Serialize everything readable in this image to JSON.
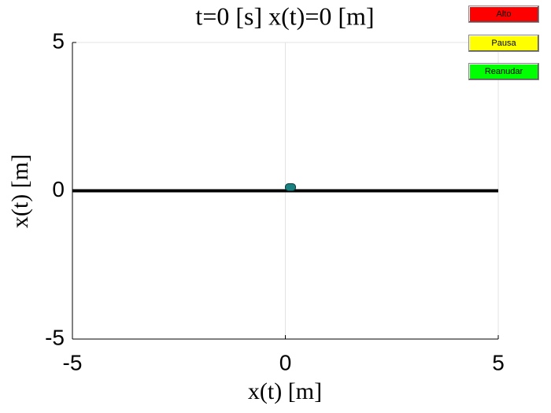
{
  "chart_data": {
    "type": "line",
    "title": "t=0 [s] x(t)=0 [m]",
    "xlabel": "x(t) [m]",
    "ylabel": "x(t) [m]",
    "xlim": [
      -5,
      5
    ],
    "ylim": [
      -5,
      5
    ],
    "xticks": [
      -5,
      0,
      5
    ],
    "yticks": [
      -5,
      0,
      5
    ],
    "grid": true,
    "series": [
      {
        "color": "#000000",
        "x": [
          -5,
          5
        ],
        "values": [
          0,
          0
        ]
      }
    ],
    "marker": {
      "x": 0,
      "y": 0,
      "color": "#1a8080"
    }
  },
  "buttons": [
    {
      "label": "Alto",
      "color": "#ff0000"
    },
    {
      "label": "Pausa",
      "color": "#ffff00"
    },
    {
      "label": "Reanudar",
      "color": "#00ff00"
    }
  ]
}
